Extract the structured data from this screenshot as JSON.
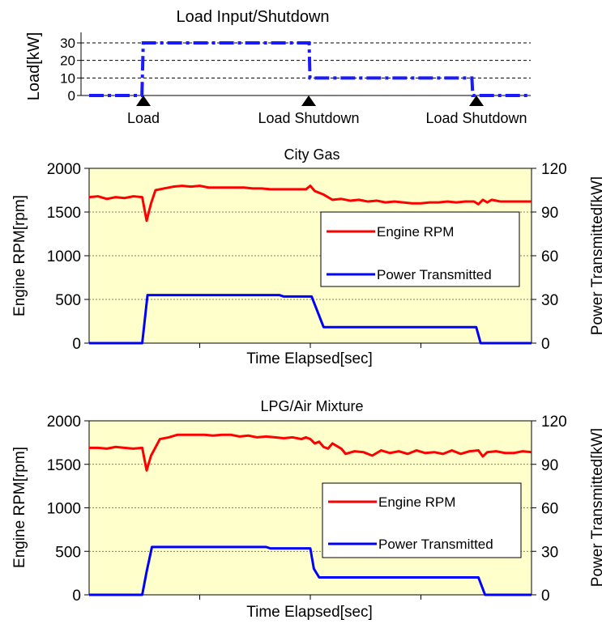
{
  "chart_data": [
    {
      "type": "line",
      "title": "Load Input/Shutdown",
      "ylabel": "Load[kW]",
      "y_ticks": [
        0,
        10,
        20,
        30
      ],
      "ylim": [
        0,
        35
      ],
      "xlim": [
        0,
        100
      ],
      "grid": "horizontal dashed at 10, 20, 30",
      "series": [
        {
          "color": "#1a1aff",
          "style": "dash-dot",
          "x": [
            0,
            12,
            12.3,
            50,
            50.2,
            87,
            87.2,
            100
          ],
          "y": [
            0,
            0,
            30,
            30,
            10,
            10,
            0,
            0
          ]
        }
      ],
      "events": [
        {
          "x": 12.5,
          "label": "Load"
        },
        {
          "x": 50,
          "label": "Load Shutdown"
        },
        {
          "x": 87.5,
          "label": "Load Shutdown"
        }
      ]
    },
    {
      "type": "line",
      "title": "City Gas",
      "xlabel": "Time Elapsed[sec]",
      "ylabel": "Engine RPM[rpm]",
      "y2label": "Power Transmitted[kW]",
      "ylim": [
        0,
        2000
      ],
      "y_ticks": [
        0,
        500,
        1000,
        1500,
        2000
      ],
      "y2lim": [
        0,
        120
      ],
      "y2_ticks": [
        0,
        30,
        60,
        90,
        120
      ],
      "xlim": [
        0,
        100
      ],
      "background": "#ffffcc",
      "legend": {
        "position": "center-right",
        "entries": [
          "Engine RPM",
          "Power Transmitted"
        ]
      },
      "series": [
        {
          "name": "Engine RPM",
          "color": "#ff0000",
          "axis": "left",
          "x": [
            0,
            2,
            4,
            6,
            8,
            10,
            12,
            13,
            14,
            15,
            17,
            19,
            21,
            23,
            25,
            27,
            29,
            31,
            33,
            35,
            37,
            39,
            41,
            43,
            45,
            47,
            49,
            50,
            51,
            53,
            55,
            57,
            59,
            61,
            63,
            65,
            67,
            69,
            71,
            73,
            75,
            77,
            79,
            81,
            83,
            85,
            87,
            88,
            89,
            90,
            91,
            93,
            95,
            97,
            100
          ],
          "y": [
            1670,
            1680,
            1650,
            1670,
            1660,
            1680,
            1670,
            1400,
            1600,
            1750,
            1770,
            1790,
            1800,
            1790,
            1800,
            1780,
            1780,
            1780,
            1780,
            1780,
            1770,
            1770,
            1760,
            1760,
            1760,
            1760,
            1760,
            1800,
            1740,
            1700,
            1640,
            1650,
            1630,
            1640,
            1620,
            1630,
            1610,
            1620,
            1610,
            1600,
            1600,
            1610,
            1610,
            1620,
            1610,
            1620,
            1620,
            1590,
            1640,
            1610,
            1640,
            1620,
            1620,
            1620,
            1620
          ]
        },
        {
          "name": "Power Transmitted",
          "color": "#0000ff",
          "axis": "right",
          "x": [
            0,
            12,
            13.2,
            43,
            44,
            50.3,
            53,
            87.5,
            88.5,
            100
          ],
          "y": [
            0,
            0,
            33,
            33,
            32,
            32,
            11,
            11,
            0,
            0
          ]
        }
      ]
    },
    {
      "type": "line",
      "title": "LPG/Air Mixture",
      "xlabel": "Time Elapsed[sec]",
      "ylabel": "Engine RPM[rpm]",
      "y2label": "Power Transmitted[kW]",
      "ylim": [
        0,
        2000
      ],
      "y_ticks": [
        0,
        500,
        1000,
        1500,
        2000
      ],
      "y2lim": [
        0,
        120
      ],
      "y2_ticks": [
        0,
        30,
        60,
        90,
        120
      ],
      "xlim": [
        0,
        100
      ],
      "background": "#ffffcc",
      "legend": {
        "position": "center-right",
        "entries": [
          "Engine RPM",
          "Power Transmitted"
        ]
      },
      "series": [
        {
          "name": "Engine RPM",
          "color": "#ff0000",
          "axis": "left",
          "x": [
            0,
            2,
            4,
            6,
            8,
            10,
            12,
            13,
            14,
            16,
            18,
            20,
            22,
            24,
            26,
            28,
            30,
            32,
            34,
            36,
            38,
            40,
            42,
            44,
            46,
            48,
            49,
            50,
            51,
            52,
            53,
            54,
            55,
            57,
            58,
            60,
            62,
            64,
            66,
            68,
            70,
            72,
            74,
            76,
            78,
            80,
            82,
            84,
            86,
            88,
            89,
            90,
            92,
            94,
            96,
            98,
            100
          ],
          "y": [
            1690,
            1690,
            1680,
            1700,
            1690,
            1680,
            1690,
            1430,
            1600,
            1790,
            1810,
            1840,
            1840,
            1840,
            1840,
            1830,
            1840,
            1840,
            1820,
            1830,
            1810,
            1820,
            1810,
            1800,
            1810,
            1790,
            1810,
            1790,
            1740,
            1760,
            1700,
            1680,
            1740,
            1680,
            1620,
            1650,
            1640,
            1600,
            1660,
            1630,
            1650,
            1620,
            1660,
            1630,
            1640,
            1620,
            1660,
            1620,
            1650,
            1660,
            1590,
            1640,
            1650,
            1630,
            1630,
            1650,
            1640
          ]
        },
        {
          "name": "Power Transmitted",
          "color": "#0000ff",
          "axis": "right",
          "x": [
            0,
            12,
            13,
            14.2,
            40,
            41,
            50,
            50.8,
            52,
            88,
            89.5,
            100
          ],
          "y": [
            0,
            0,
            16,
            33,
            33,
            32,
            32,
            18,
            12,
            12,
            0,
            0
          ]
        }
      ]
    }
  ]
}
